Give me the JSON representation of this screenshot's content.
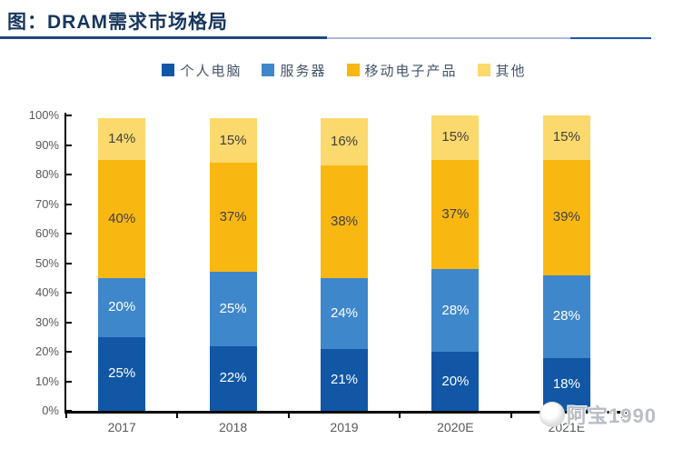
{
  "header": {
    "title": "图：DRAM需求市场格局"
  },
  "chart_data": {
    "type": "bar",
    "stacked": true,
    "title": "图：DRAM需求市场格局",
    "categories": [
      "2017",
      "2018",
      "2019",
      "2020E",
      "2021E"
    ],
    "series": [
      {
        "name": "个人电脑",
        "color": "#1157A6",
        "label_color": "#FFFFFF",
        "values": [
          25,
          22,
          21,
          20,
          18
        ]
      },
      {
        "name": "服务器",
        "color": "#3F87CB",
        "label_color": "#FFFFFF",
        "values": [
          20,
          25,
          24,
          28,
          28
        ]
      },
      {
        "name": "移动电子产品",
        "color": "#F9B712",
        "label_color": "#404040",
        "values": [
          40,
          37,
          38,
          37,
          39
        ]
      },
      {
        "name": "其他",
        "color": "#FBD96D",
        "label_color": "#404040",
        "values": [
          14,
          15,
          16,
          15,
          15
        ]
      }
    ],
    "value_suffix": "%",
    "ylim": [
      0,
      100
    ],
    "yticks": [
      "0%",
      "10%",
      "20%",
      "30%",
      "40%",
      "50%",
      "60%",
      "70%",
      "80%",
      "90%",
      "100%"
    ],
    "legend_position": "top",
    "grid": false
  },
  "watermark": {
    "text": "阿宝1990"
  },
  "colors": {
    "title": "#17365D",
    "axis_label": "#595959",
    "legend_label": "#44546A",
    "axis_line": "#000000",
    "underline_dark": "#24477E",
    "underline_light": "#ADB9D8",
    "underline_blue": "#1F55A6"
  }
}
